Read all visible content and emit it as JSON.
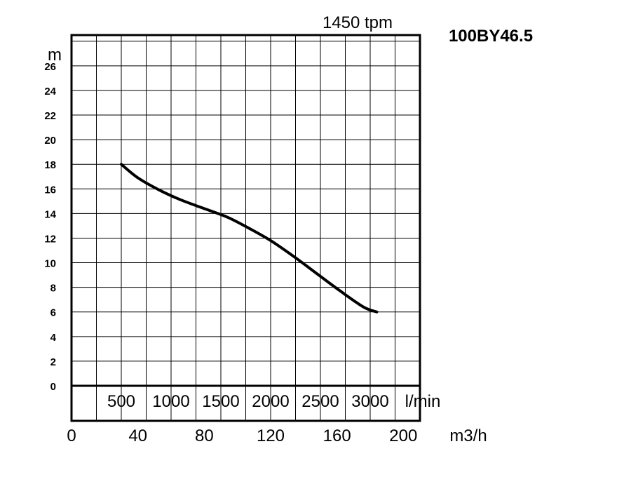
{
  "chart_data": {
    "type": "line",
    "model": "100BY46.5",
    "speed_label": "1450 tpm",
    "y_unit": "m",
    "x_unit_primary": "m3/h",
    "x_unit_secondary": "l/min",
    "y_ticks": [
      "0",
      "2",
      "4",
      "6",
      "8",
      "10",
      "12",
      "14",
      "16",
      "18",
      "20",
      "22",
      "24",
      "26"
    ],
    "x_ticks_m3h": [
      "0",
      "40",
      "80",
      "120",
      "160",
      "200"
    ],
    "x_ticks_lmin": [
      "500",
      "1000",
      "1500",
      "2000",
      "2500",
      "3000"
    ],
    "xlim": [
      0,
      210
    ],
    "ylim": [
      0,
      28.5
    ],
    "grid": true,
    "series": [
      {
        "x": [
          30,
          40,
          53,
          66,
          80,
          94,
          107,
          120,
          134,
          148,
          162,
          176,
          184
        ],
        "y": [
          18,
          16.9,
          15.9,
          15.1,
          14.4,
          13.7,
          12.8,
          11.8,
          10.5,
          9.1,
          7.7,
          6.4,
          6.0
        ]
      }
    ]
  }
}
